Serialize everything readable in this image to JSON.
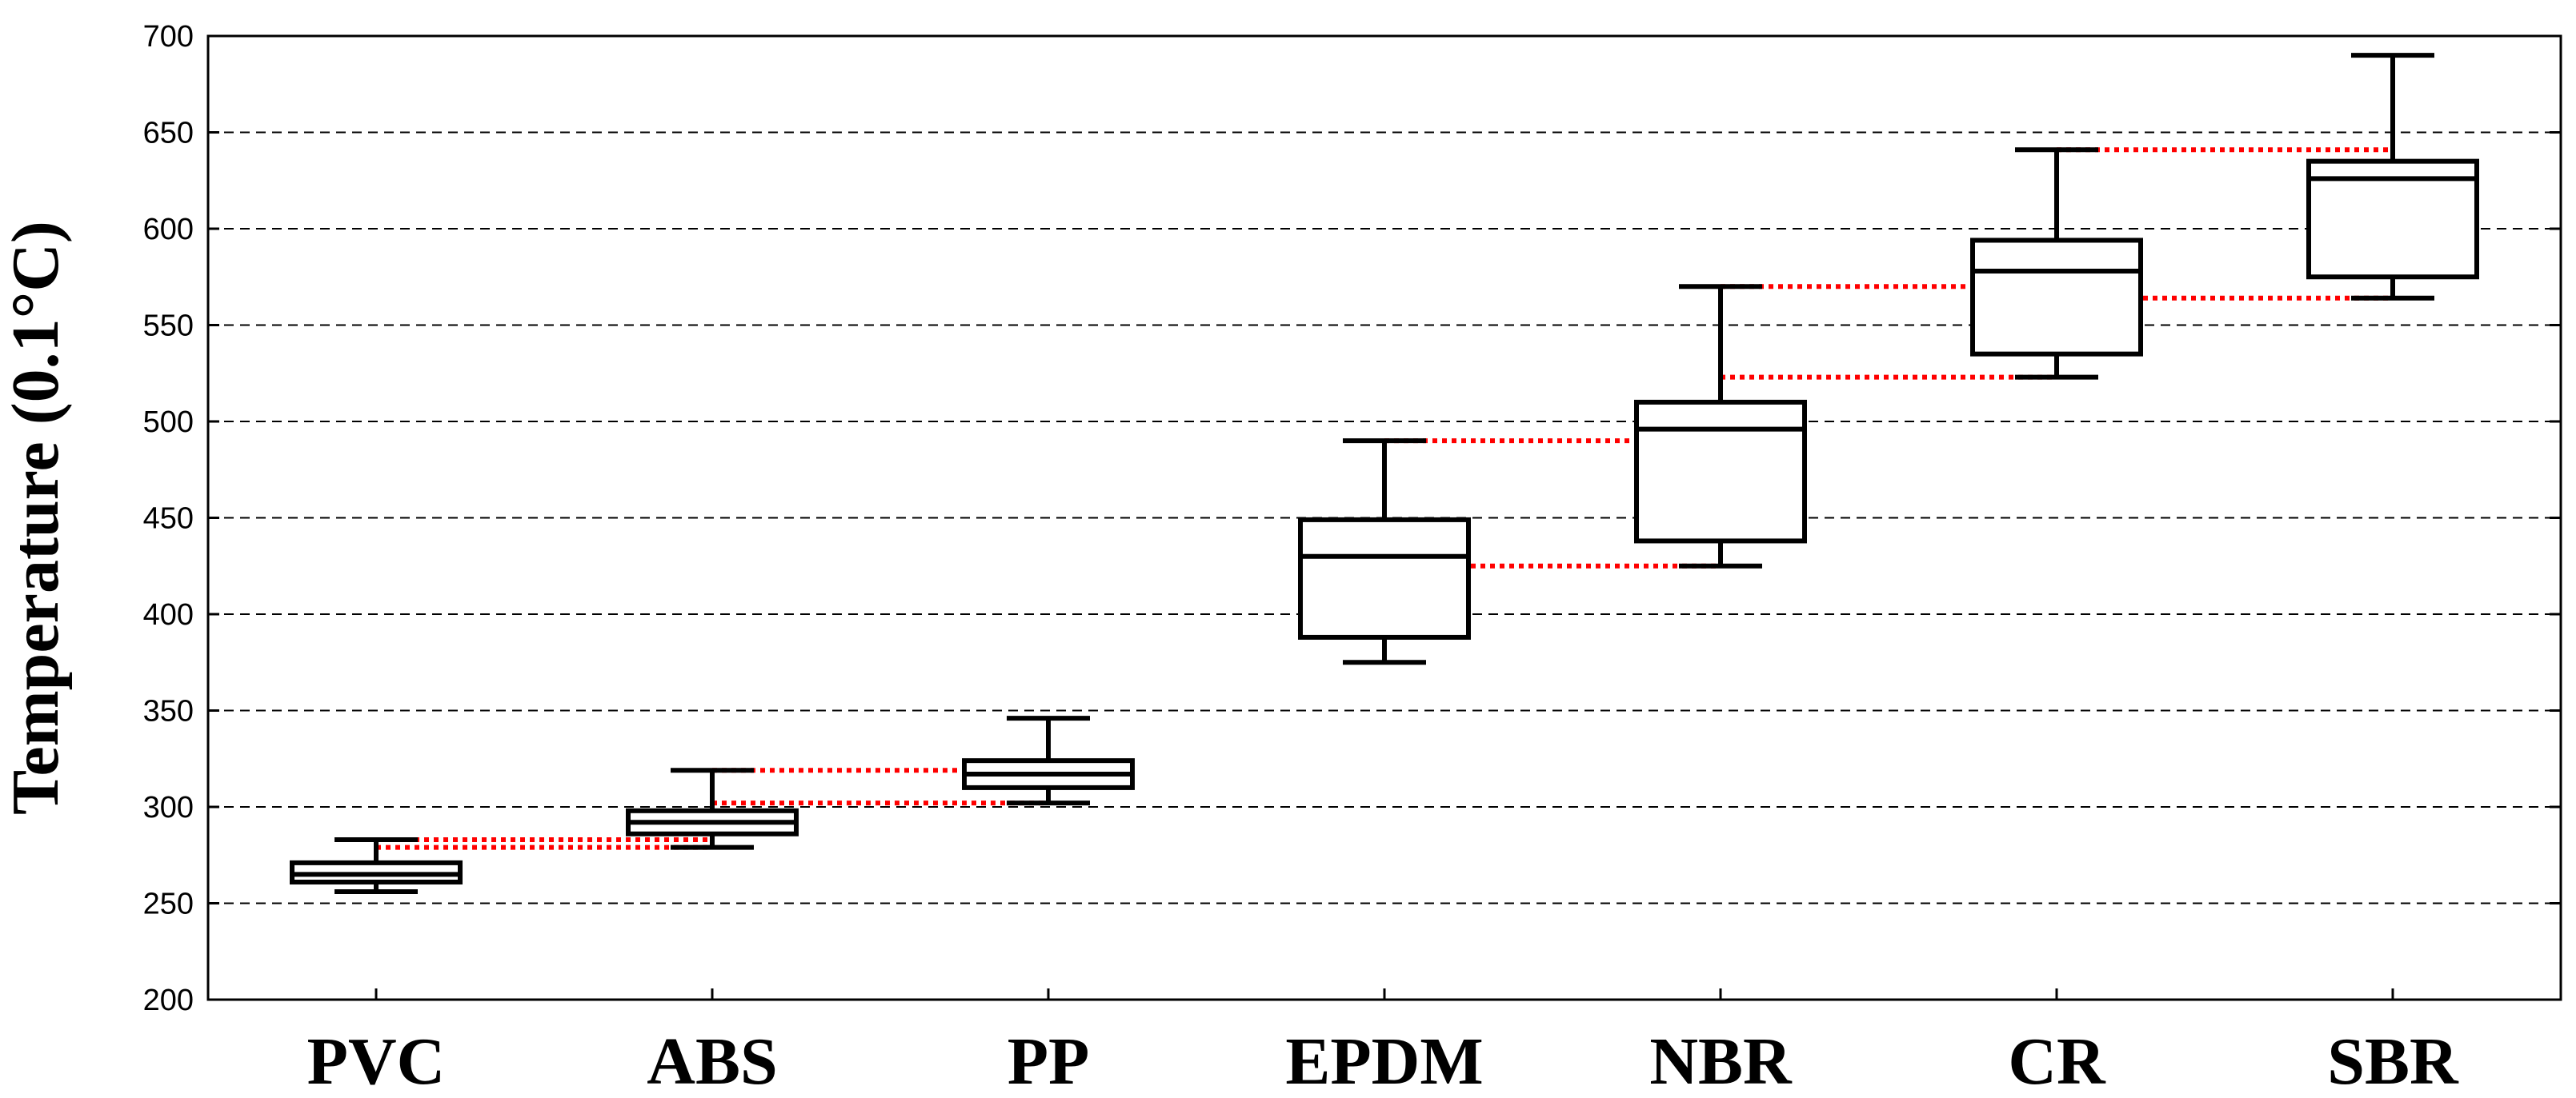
{
  "chart_data": {
    "type": "box",
    "title": "",
    "xlabel": "",
    "ylabel": "Temperature (0.1°C)",
    "ylim": [
      200,
      700
    ],
    "yticks": [
      200,
      250,
      300,
      350,
      400,
      450,
      500,
      550,
      600,
      650,
      700
    ],
    "grid": "horizontal dashed",
    "categories": [
      "PVC",
      "ABS",
      "PP",
      "EPDM",
      "NBR",
      "CR",
      "SBR"
    ],
    "boxes": [
      {
        "category": "PVC",
        "min": 256,
        "q1": 261,
        "median": 265,
        "q3": 271,
        "max": 283
      },
      {
        "category": "ABS",
        "min": 279,
        "q1": 286,
        "median": 292,
        "q3": 298,
        "max": 319
      },
      {
        "category": "PP",
        "min": 302,
        "q1": 310,
        "median": 317,
        "q3": 324,
        "max": 346
      },
      {
        "category": "EPDM",
        "min": 375,
        "q1": 388,
        "median": 430,
        "q3": 449,
        "max": 490
      },
      {
        "category": "NBR",
        "min": 425,
        "q1": 438,
        "median": 496,
        "q3": 510,
        "max": 570
      },
      {
        "category": "CR",
        "min": 523,
        "q1": 535,
        "median": 578,
        "q3": 594,
        "max": 641
      },
      {
        "category": "SBR",
        "min": 564,
        "q1": 575,
        "median": 626,
        "q3": 635,
        "max": 690
      }
    ],
    "connectors": [
      {
        "from": "PVC",
        "to": "ABS",
        "value": 283
      },
      {
        "from": "PVC",
        "to": "ABS",
        "value": 279
      },
      {
        "from": "ABS",
        "to": "PP",
        "value": 319
      },
      {
        "from": "ABS",
        "to": "PP",
        "value": 302
      },
      {
        "from": "EPDM",
        "to": "NBR",
        "value": 490
      },
      {
        "from": "EPDM",
        "to": "NBR",
        "value": 425
      },
      {
        "from": "NBR",
        "to": "CR",
        "value": 570
      },
      {
        "from": "NBR",
        "to": "CR",
        "value": 523
      },
      {
        "from": "CR",
        "to": "SBR",
        "value": 641
      },
      {
        "from": "CR",
        "to": "SBR",
        "value": 564
      }
    ],
    "colors": {
      "box": "#000000",
      "grid": "#000000",
      "connector": "#ff0000"
    }
  }
}
